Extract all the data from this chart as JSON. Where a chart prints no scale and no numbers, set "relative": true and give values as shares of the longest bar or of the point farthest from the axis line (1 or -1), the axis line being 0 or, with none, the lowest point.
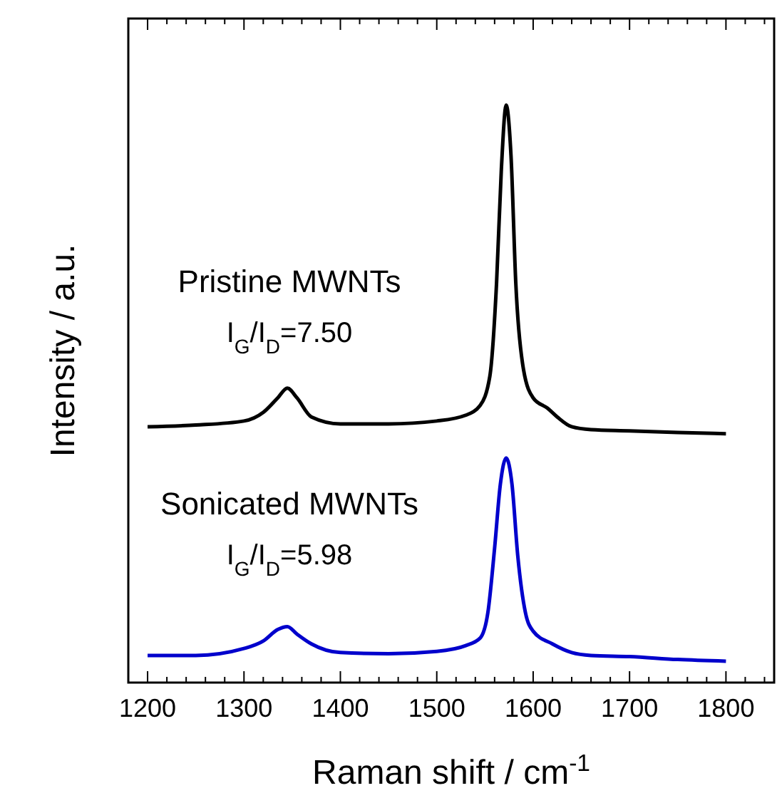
{
  "chart_data": {
    "type": "line",
    "relative": true,
    "xlabel": "Raman shift / cm$^{-1}$",
    "ylabel": "Intensity / a.u.",
    "xlim": [
      1180,
      1850
    ],
    "xticks": [
      {
        "value": 1180,
        "label": null
      },
      1200,
      {
        "value": 1220,
        "label": null
      },
      {
        "value": 1240,
        "label": null
      },
      {
        "value": 1260,
        "label": null
      },
      {
        "value": 1280,
        "label": null
      },
      1300,
      {
        "value": 1320,
        "label": null
      },
      {
        "value": 1340,
        "label": null
      },
      {
        "value": 1360,
        "label": null
      },
      {
        "value": 1380,
        "label": null
      },
      1400,
      {
        "value": 1420,
        "label": null
      },
      {
        "value": 1440,
        "label": null
      },
      {
        "value": 1460,
        "label": null
      },
      {
        "value": 1480,
        "label": null
      },
      1500,
      {
        "value": 1520,
        "label": null
      },
      {
        "value": 1540,
        "label": null
      },
      {
        "value": 1560,
        "label": null
      },
      {
        "value": 1580,
        "label": null
      },
      1600,
      {
        "value": 1620,
        "label": null
      },
      {
        "value": 1640,
        "label": null
      },
      {
        "value": 1660,
        "label": null
      },
      {
        "value": 1680,
        "label": null
      },
      1700,
      {
        "value": 1720,
        "label": null
      },
      {
        "value": 1740,
        "label": null
      },
      {
        "value": 1760,
        "label": null
      },
      {
        "value": 1780,
        "label": null
      },
      1800,
      {
        "value": 1820,
        "label": null
      },
      {
        "value": 1840,
        "label": null
      }
    ],
    "x": [
      1200,
      1250,
      1300,
      1320,
      1335,
      1345,
      1355,
      1370,
      1400,
      1450,
      1500,
      1530,
      1545,
      1555,
      1562,
      1567,
      1572,
      1577,
      1582,
      1590,
      1600,
      1615,
      1625,
      1640,
      1660,
      1700,
      1750,
      1800
    ],
    "series": [
      {
        "color": "#000000",
        "values": [
          0.443,
          0.446,
          0.453,
          0.468,
          0.493,
          0.51,
          0.493,
          0.46,
          0.448,
          0.448,
          0.453,
          0.463,
          0.48,
          0.53,
          0.691,
          0.889,
          1,
          0.913,
          0.691,
          0.542,
          0.493,
          0.475,
          0.46,
          0.443,
          0.438,
          0.436,
          0.433,
          0.431
        ]
      },
      {
        "color": "#0000cc",
        "x": [
          1200,
          1250,
          1300,
          1320,
          1335,
          1345,
          1355,
          1370,
          1400,
          1450,
          1500,
          1530,
          1545,
          1553,
          1560,
          1566,
          1572,
          1578,
          1584,
          1592,
          1600,
          1620,
          1640,
          1660,
          1700,
          1750,
          1800
        ],
        "values": [
          0.047,
          0.047,
          0.059,
          0.072,
          0.092,
          0.097,
          0.084,
          0.067,
          0.052,
          0.05,
          0.054,
          0.064,
          0.077,
          0.121,
          0.233,
          0.344,
          0.389,
          0.344,
          0.22,
          0.121,
          0.089,
          0.067,
          0.052,
          0.047,
          0.045,
          0.04,
          0.037
        ]
      }
    ],
    "annotations": [
      "Pristine MWNTs",
      "I$_{G}$/I$_{D}$=7.50",
      "Sonicated MWNTs",
      "I$_{G}$/I$_{D}$=5.98"
    ]
  }
}
